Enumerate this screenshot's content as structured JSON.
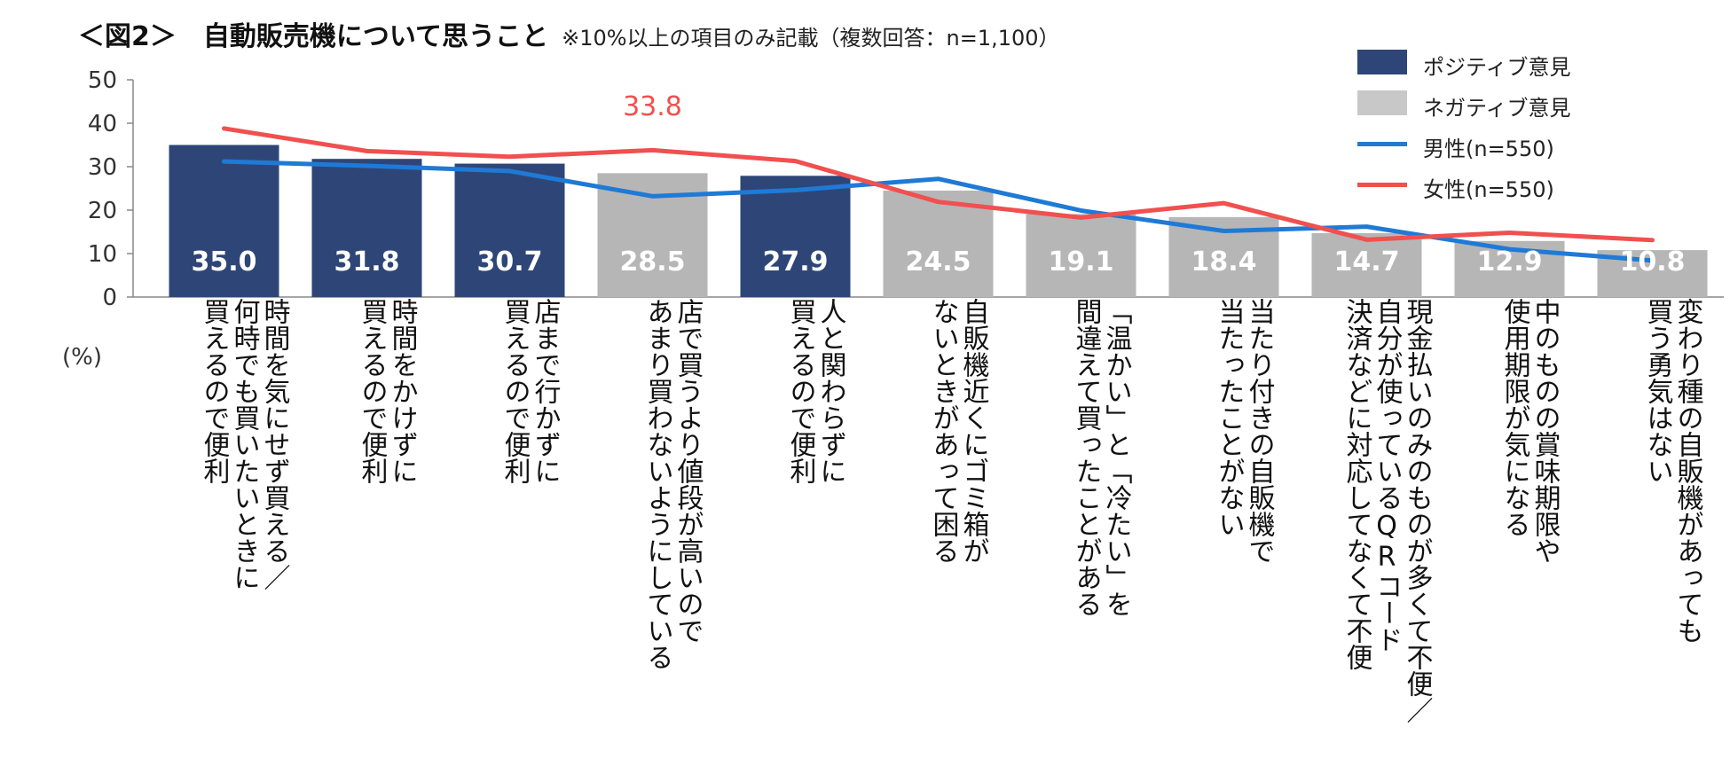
{
  "title": "＜図2＞　自動販売機について思うこと",
  "subtitle": "※10%以上の項目のみ記載（複数回答：n=1,100）",
  "unit_label": "(%)",
  "colors": {
    "positive": "#2e4677",
    "negative": "#b6b6b6",
    "male": "#1f7ad6",
    "female": "#f0504f"
  },
  "legend": [
    {
      "label": "ポジティブ意見",
      "kind": "box",
      "color": "#2e4677"
    },
    {
      "label": "ネガティブ意見",
      "kind": "box",
      "color": "#c8c8c8"
    },
    {
      "label": "男性(n=550)",
      "kind": "line",
      "color": "#1f7ad6"
    },
    {
      "label": "女性(n=550)",
      "kind": "line",
      "color": "#f0504f"
    }
  ],
  "chart_data": {
    "type": "bar",
    "categories": [
      "時間を気にせず買える／何時でも買いたいときに買えるので便利",
      "時間をかけずに買えるので便利",
      "店まで行かずに買えるので便利",
      "店で買うより値段が高いのであまり買わないようにしている",
      "人と関わらずに買えるので便利",
      "自販機近くにゴミ箱がないときがあって困る",
      "「温かい」と「冷たい」を間違えて買ったことがある",
      "当たり付きの自販機で当たったことがない",
      "現金払いのみのものが多くて不便／自分が使っているQRコード決済などに対応してなくて不便",
      "中のものの賞味期限や使用期限が気になる",
      "変わり種の自販機があっても買う勇気はない"
    ],
    "category_lines": [
      [
        "時間を気にせず買える／",
        "何時でも買いたいときに",
        "買えるので便利"
      ],
      [
        "時間をかけずに",
        "買えるので便利"
      ],
      [
        "店まで行かずに",
        "買えるので便利"
      ],
      [
        "店で買うより値段が高いので",
        "あまり買わないようにしている"
      ],
      [
        "人と関わらずに",
        "買えるので便利"
      ],
      [
        "自販機近くにゴミ箱が",
        "ないときがあって困る"
      ],
      [
        "「温かい」と「冷たい」を",
        "間違えて買ったことがある"
      ],
      [
        "当たり付きの自販機で",
        "当たったことがない"
      ],
      [
        "現金払いのみのものが多くて不便／",
        "自分が使っているQRコード",
        "決済などに対応してなくて不便"
      ],
      [
        "中のものの賞味期限や",
        "使用期限が気になる"
      ],
      [
        "変わり種の自販機があっても",
        "買う勇気はない"
      ]
    ],
    "values": [
      35.0,
      31.8,
      30.7,
      28.5,
      27.9,
      24.5,
      19.1,
      18.4,
      14.7,
      12.9,
      10.8
    ],
    "value_labels": [
      "35.0",
      "31.8",
      "30.7",
      "28.5",
      "27.9",
      "24.5",
      "19.1",
      "18.4",
      "14.7",
      "12.9",
      "10.8"
    ],
    "bar_types": [
      "positive",
      "positive",
      "positive",
      "negative",
      "positive",
      "negative",
      "negative",
      "negative",
      "negative",
      "negative",
      "negative"
    ],
    "series": [
      {
        "name": "男性(n=550)",
        "type": "line",
        "values": [
          31.2,
          30.2,
          29.0,
          23.2,
          24.6,
          27.2,
          19.9,
          15.2,
          16.2,
          11.0,
          8.4
        ]
      },
      {
        "name": "女性(n=550)",
        "type": "line",
        "values": [
          38.8,
          33.6,
          32.3,
          33.8,
          31.3,
          21.9,
          18.3,
          21.6,
          13.2,
          14.8,
          13.1
        ]
      }
    ],
    "annotation": {
      "series": "女性(n=550)",
      "index": 3,
      "text": "33.8"
    },
    "ylim": [
      0,
      50
    ],
    "yticks": [
      0,
      10,
      20,
      30,
      40,
      50
    ],
    "xlabel": "",
    "ylabel": "(%)"
  }
}
